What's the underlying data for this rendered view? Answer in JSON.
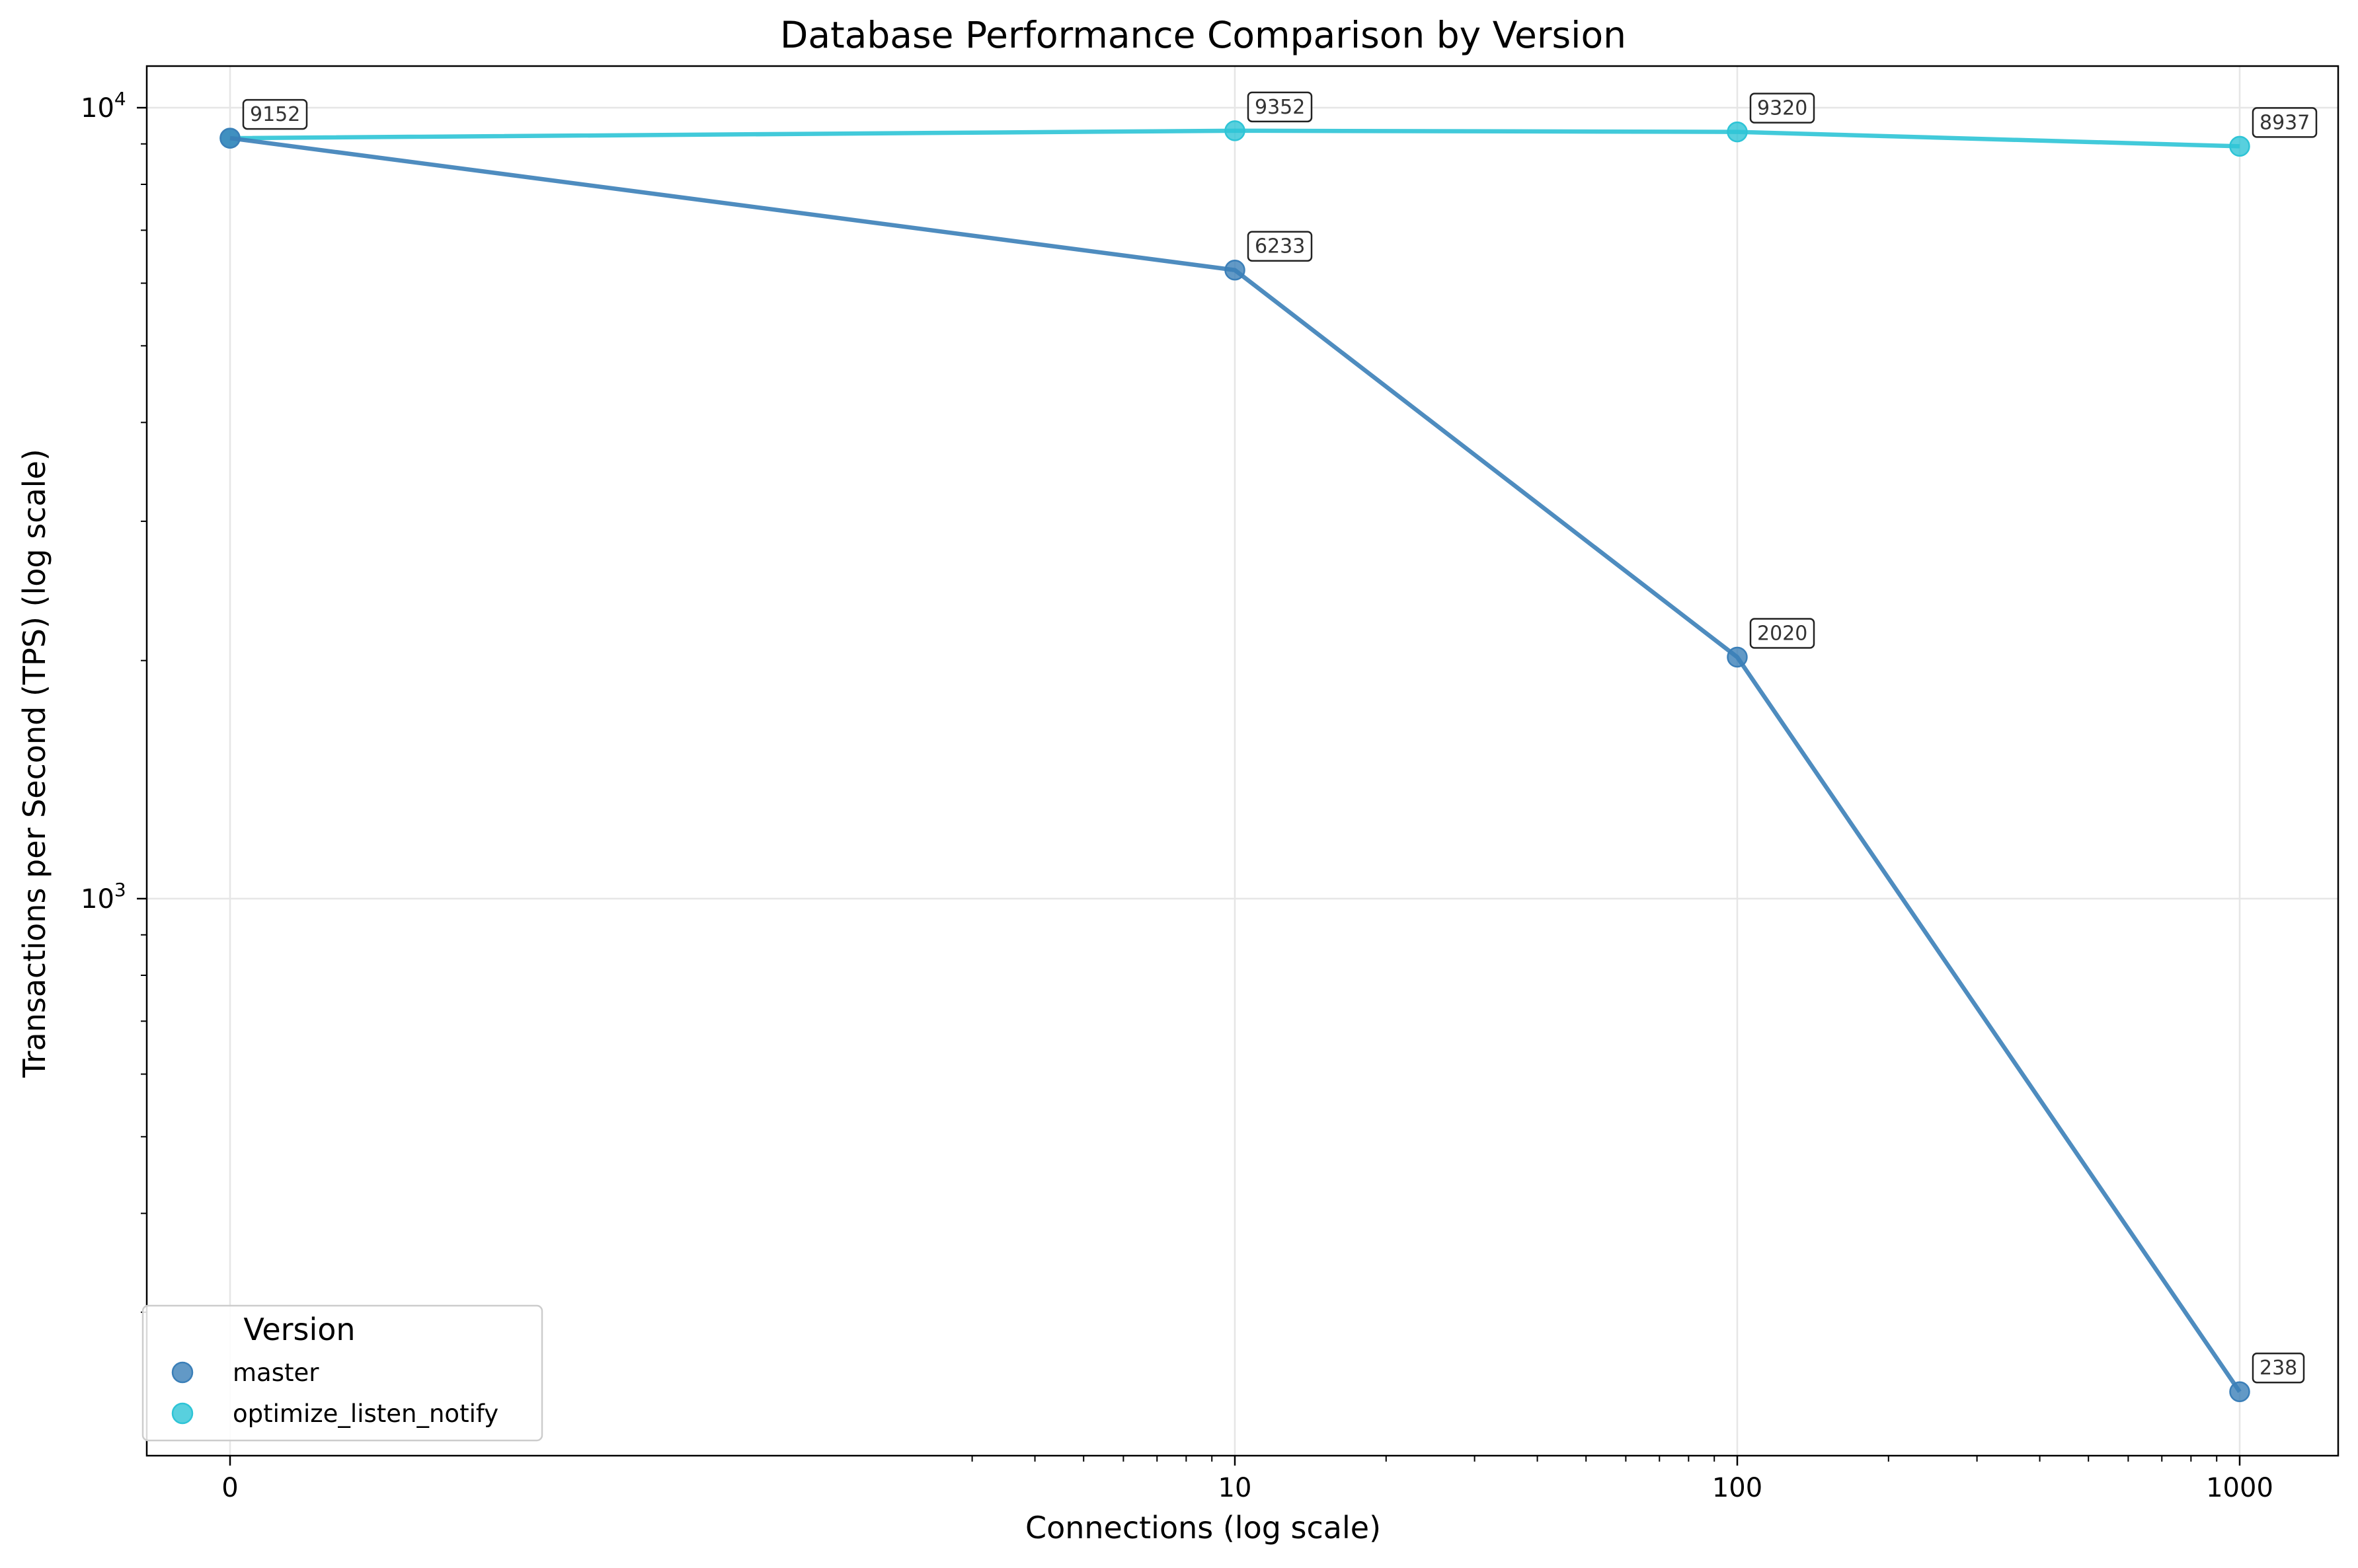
{
  "chart_data": {
    "type": "line",
    "title": "Database Performance Comparison by Version",
    "xlabel": "Connections (log scale)",
    "ylabel": "Transactions per Second (TPS) (log scale)",
    "x_scale": "log",
    "y_scale": "log",
    "x_ticks": [
      "0",
      "10",
      "100",
      "1000"
    ],
    "y_ticks": [
      {
        "base": "10",
        "exp": "3",
        "value": 1000
      },
      {
        "base": "10",
        "exp": "4",
        "value": 10000
      }
    ],
    "grid": true,
    "legend": {
      "title": "Version",
      "placement": "lower-left"
    },
    "categories": [
      "0",
      "10",
      "100",
      "1000"
    ],
    "series": [
      {
        "name": "master",
        "color": "#3b7fb8",
        "values": [
          9152,
          6233,
          2020,
          238
        ]
      },
      {
        "name": "optimize_listen_notify",
        "color": "#2ec4d6",
        "values": [
          9152,
          9352,
          9320,
          8937
        ]
      }
    ],
    "annotations": [
      {
        "x": "0",
        "y": 9152,
        "label": "9152"
      },
      {
        "x": "10",
        "y": 9352,
        "label": "9352"
      },
      {
        "x": "100",
        "y": 9320,
        "label": "9320"
      },
      {
        "x": "1000",
        "y": 8937,
        "label": "8937"
      },
      {
        "x": "10",
        "y": 6233,
        "label": "6233"
      },
      {
        "x": "100",
        "y": 2020,
        "label": "2020"
      },
      {
        "x": "1000",
        "y": 238,
        "label": "238"
      }
    ]
  }
}
